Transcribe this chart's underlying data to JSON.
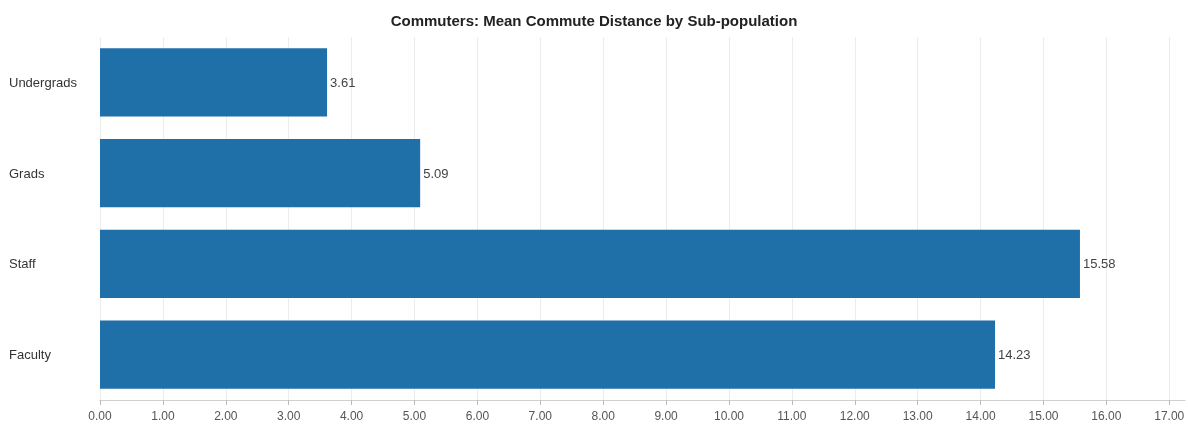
{
  "chart_data": {
    "type": "bar",
    "title": "Commuters: Mean Commute Distance by Sub-population",
    "orientation": "horizontal",
    "categories": [
      "Undergrads",
      "Grads",
      "Staff",
      "Faculty"
    ],
    "values": [
      3.61,
      5.09,
      15.58,
      14.23
    ],
    "color": "#1f6fa9",
    "data_labels": true,
    "xlim": [
      0,
      17.25
    ],
    "xticks": [
      {
        "value": 0,
        "label": "0.00"
      },
      {
        "value": 1,
        "label": "1.00"
      },
      {
        "value": 2,
        "label": "2.00"
      },
      {
        "value": 3,
        "label": "3.00"
      },
      {
        "value": 4,
        "label": "4.00"
      },
      {
        "value": 5,
        "label": "5.00"
      },
      {
        "value": 6,
        "label": "6.00"
      },
      {
        "value": 7,
        "label": "7.00"
      },
      {
        "value": 8,
        "label": "8.00"
      },
      {
        "value": 9,
        "label": "9.00"
      },
      {
        "value": 10,
        "label": "10.00"
      },
      {
        "value": 11,
        "label": "11.00"
      },
      {
        "value": 12,
        "label": "12.00"
      },
      {
        "value": 13,
        "label": "13.00"
      },
      {
        "value": 14,
        "label": "14.00"
      },
      {
        "value": 15,
        "label": "15.00"
      },
      {
        "value": 16,
        "label": "16.00"
      },
      {
        "value": 17,
        "label": "17.00"
      }
    ],
    "grid": "x"
  }
}
